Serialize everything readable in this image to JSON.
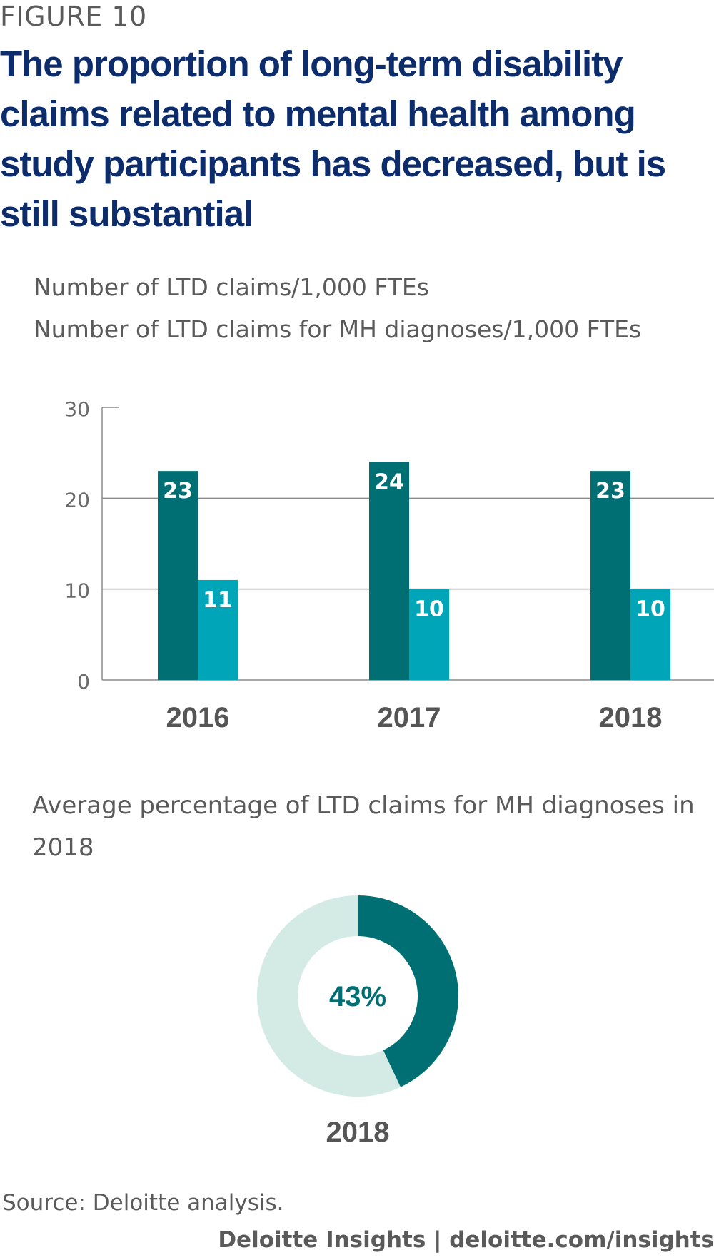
{
  "figure_label": "FIGURE 10",
  "title": "The proportion of long-term disability claims related to mental health among study participants has decreased, but is still substantial",
  "legend": [
    "Number of LTD claims/1,000 FTEs",
    "Number of LTD claims for MH diagnoses/1,000 FTEs"
  ],
  "colors": {
    "dark_teal": "#006f73",
    "light_teal": "#00a6b8",
    "donut_light": "#d3ebe4",
    "title_blue": "#0d2c6c",
    "text_gray": "#5a5a5a"
  },
  "chart_data": [
    {
      "type": "bar",
      "categories": [
        "2016",
        "2017",
        "2018"
      ],
      "series": [
        {
          "name": "Number of LTD claims/1,000 FTEs",
          "values": [
            23,
            24,
            23
          ]
        },
        {
          "name": "Number of LTD claims for MH diagnoses/1,000 FTEs",
          "values": [
            11,
            10,
            10
          ]
        }
      ],
      "yticks": [
        0,
        10,
        20,
        30
      ],
      "ylim": [
        0,
        30
      ],
      "grid": true
    },
    {
      "type": "pie",
      "title": "Average percentage of LTD claims for MH diagnoses in 2018",
      "value": 43,
      "center_label": "43%",
      "xlabel": "2018"
    }
  ],
  "source": "Source: Deloitte analysis.",
  "footer": "Deloitte Insights | deloitte.com/insights"
}
